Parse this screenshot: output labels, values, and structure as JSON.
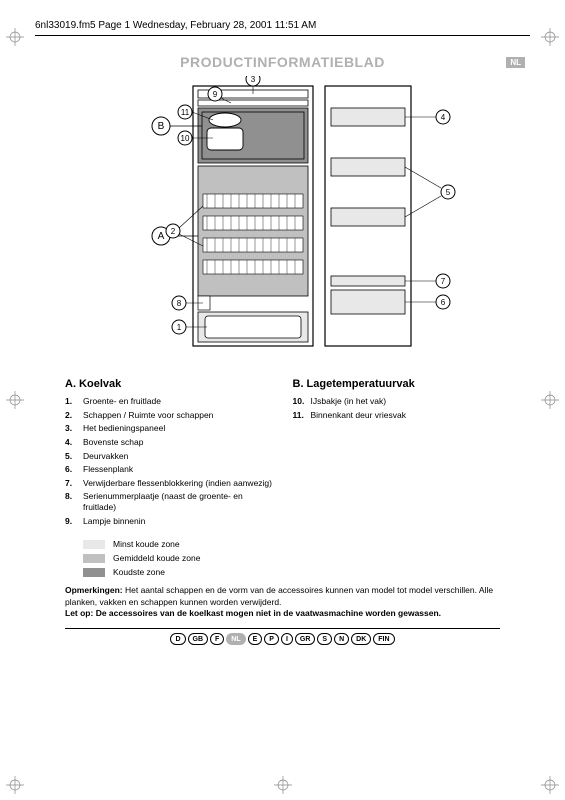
{
  "header": {
    "text": "6nl33019.fm5  Page 1  Wednesday, February 28, 2001  11:51 AM"
  },
  "title": "PRODUCTINFORMATIEBLAD",
  "langBadge": "NL",
  "diagram": {
    "callouts": {
      "A": "A",
      "B": "B",
      "n1": "1",
      "n2": "2",
      "n3": "3",
      "n4": "4",
      "n5": "5",
      "n6": "6",
      "n7": "7",
      "n8": "8",
      "n9": "9",
      "n10": "10",
      "n11": "11"
    },
    "colors": {
      "outline": "#000000",
      "zone_light": "#e8e8e8",
      "zone_mid": "#c0c0c0",
      "zone_dark": "#909090",
      "white": "#ffffff"
    }
  },
  "sectionA": {
    "heading": "A.     Koelvak",
    "items": [
      {
        "n": "1.",
        "t": "Groente- en fruitlade"
      },
      {
        "n": "2.",
        "t": "Schappen / Ruimte voor schappen"
      },
      {
        "n": "3.",
        "t": "Het bedieningspaneel"
      },
      {
        "n": "4.",
        "t": "Bovenste schap"
      },
      {
        "n": "5.",
        "t": "Deurvakken"
      },
      {
        "n": "6.",
        "t": "Flessenplank"
      },
      {
        "n": "7.",
        "t": "Verwijderbare flessenblokkering (indien aanwezig)"
      },
      {
        "n": "8.",
        "t": "Serienummerplaatje (naast de groente- en fruitlade)"
      },
      {
        "n": "9.",
        "t": "Lampje binnenin"
      }
    ]
  },
  "sectionB": {
    "heading": "B.     Lagetemperatuurvak",
    "items": [
      {
        "n": "10.",
        "t": "IJsbakje (in het vak)"
      },
      {
        "n": "11.",
        "t": "Binnenkant deur vriesvak"
      }
    ]
  },
  "legend": [
    {
      "color": "#e8e8e8",
      "label": "Minst koude zone"
    },
    {
      "color": "#c0c0c0",
      "label": "Gemiddeld koude zone"
    },
    {
      "color": "#909090",
      "label": "Koudste zone"
    }
  ],
  "notes": {
    "label": "Opmerkingen: ",
    "body": "Het aantal schappen en de vorm van de accessoires kunnen van model tot model verschillen. Alle planken, vakken en schappen kunnen worden verwijderd.",
    "warnLabel": "Let op: ",
    "warnBody": "De accessoires van de koelkast mogen niet in de vaatwasmachine worden gewassen."
  },
  "languages": [
    {
      "code": "D",
      "active": false
    },
    {
      "code": "GB",
      "active": false
    },
    {
      "code": "F",
      "active": false
    },
    {
      "code": "NL",
      "active": true
    },
    {
      "code": "E",
      "active": false
    },
    {
      "code": "P",
      "active": false
    },
    {
      "code": "I",
      "active": false
    },
    {
      "code": "GR",
      "active": false
    },
    {
      "code": "S",
      "active": false
    },
    {
      "code": "N",
      "active": false
    },
    {
      "code": "DK",
      "active": false
    },
    {
      "code": "FIN",
      "active": false
    }
  ]
}
